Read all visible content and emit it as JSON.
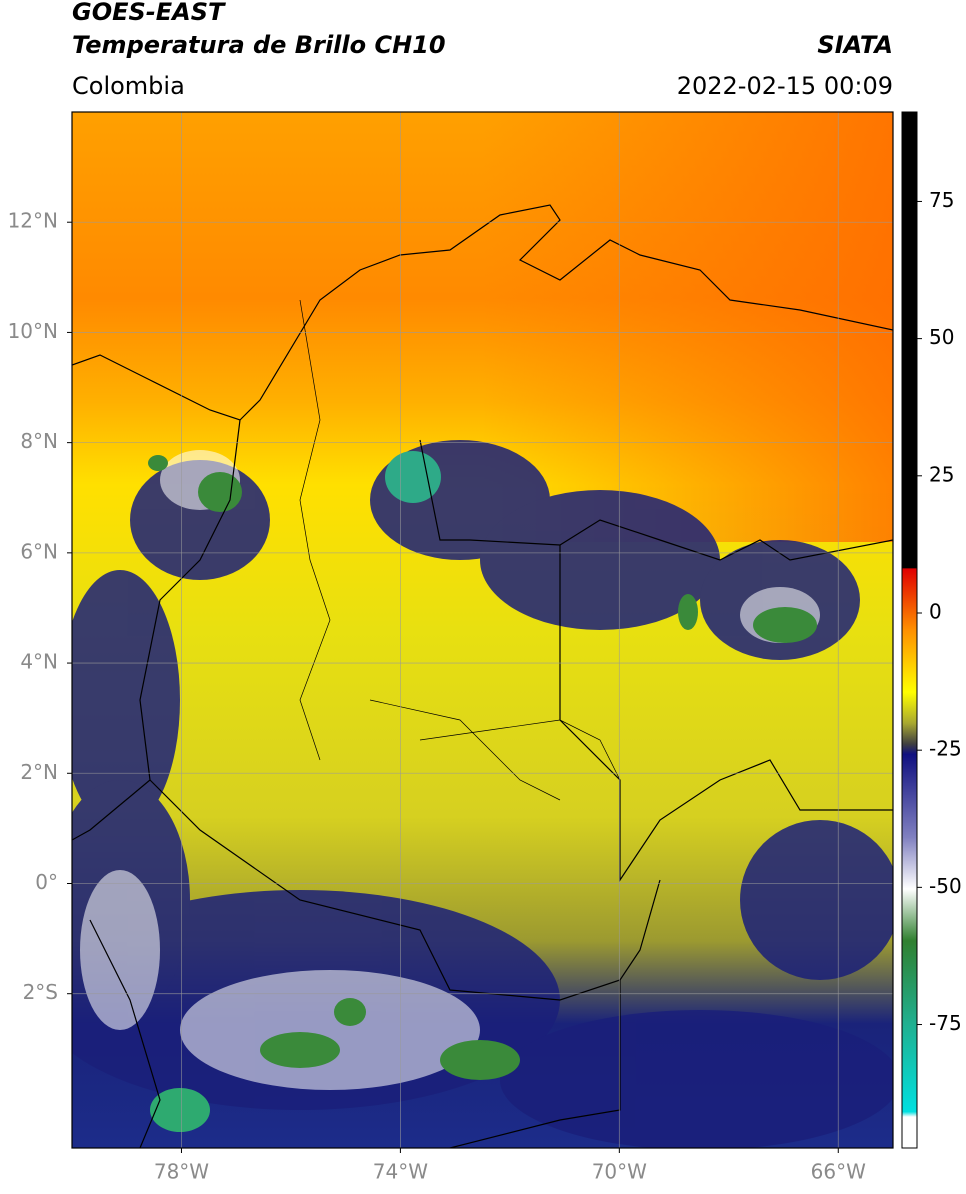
{
  "header": {
    "title": "GOES-EAST",
    "subtitle": "Temperatura de Brillo CH10",
    "region": "Colombia",
    "source": "SIATA",
    "datetime": "2022-02-15 00:09"
  },
  "map": {
    "lonlim": [
      -80,
      -65
    ],
    "latlim": [
      -4.8,
      14
    ],
    "lon_ticks": [
      {
        "value": -78,
        "label": "78°W"
      },
      {
        "value": -74,
        "label": "74°W"
      },
      {
        "value": -70,
        "label": "70°W"
      },
      {
        "value": -66,
        "label": "66°W"
      }
    ],
    "lat_ticks": [
      {
        "value": 12,
        "label": "12°N"
      },
      {
        "value": 10,
        "label": "10°N"
      },
      {
        "value": 8,
        "label": "8°N"
      },
      {
        "value": 6,
        "label": "6°N"
      },
      {
        "value": 4,
        "label": "4°N"
      },
      {
        "value": 2,
        "label": "2°N"
      },
      {
        "value": 0,
        "label": "0°"
      },
      {
        "value": -2,
        "label": "2°S"
      }
    ]
  },
  "colorbar": {
    "lim": [
      -97.5,
      91.3
    ],
    "ticks": [
      75,
      50,
      25,
      0,
      -25,
      -50,
      -75
    ]
  }
}
